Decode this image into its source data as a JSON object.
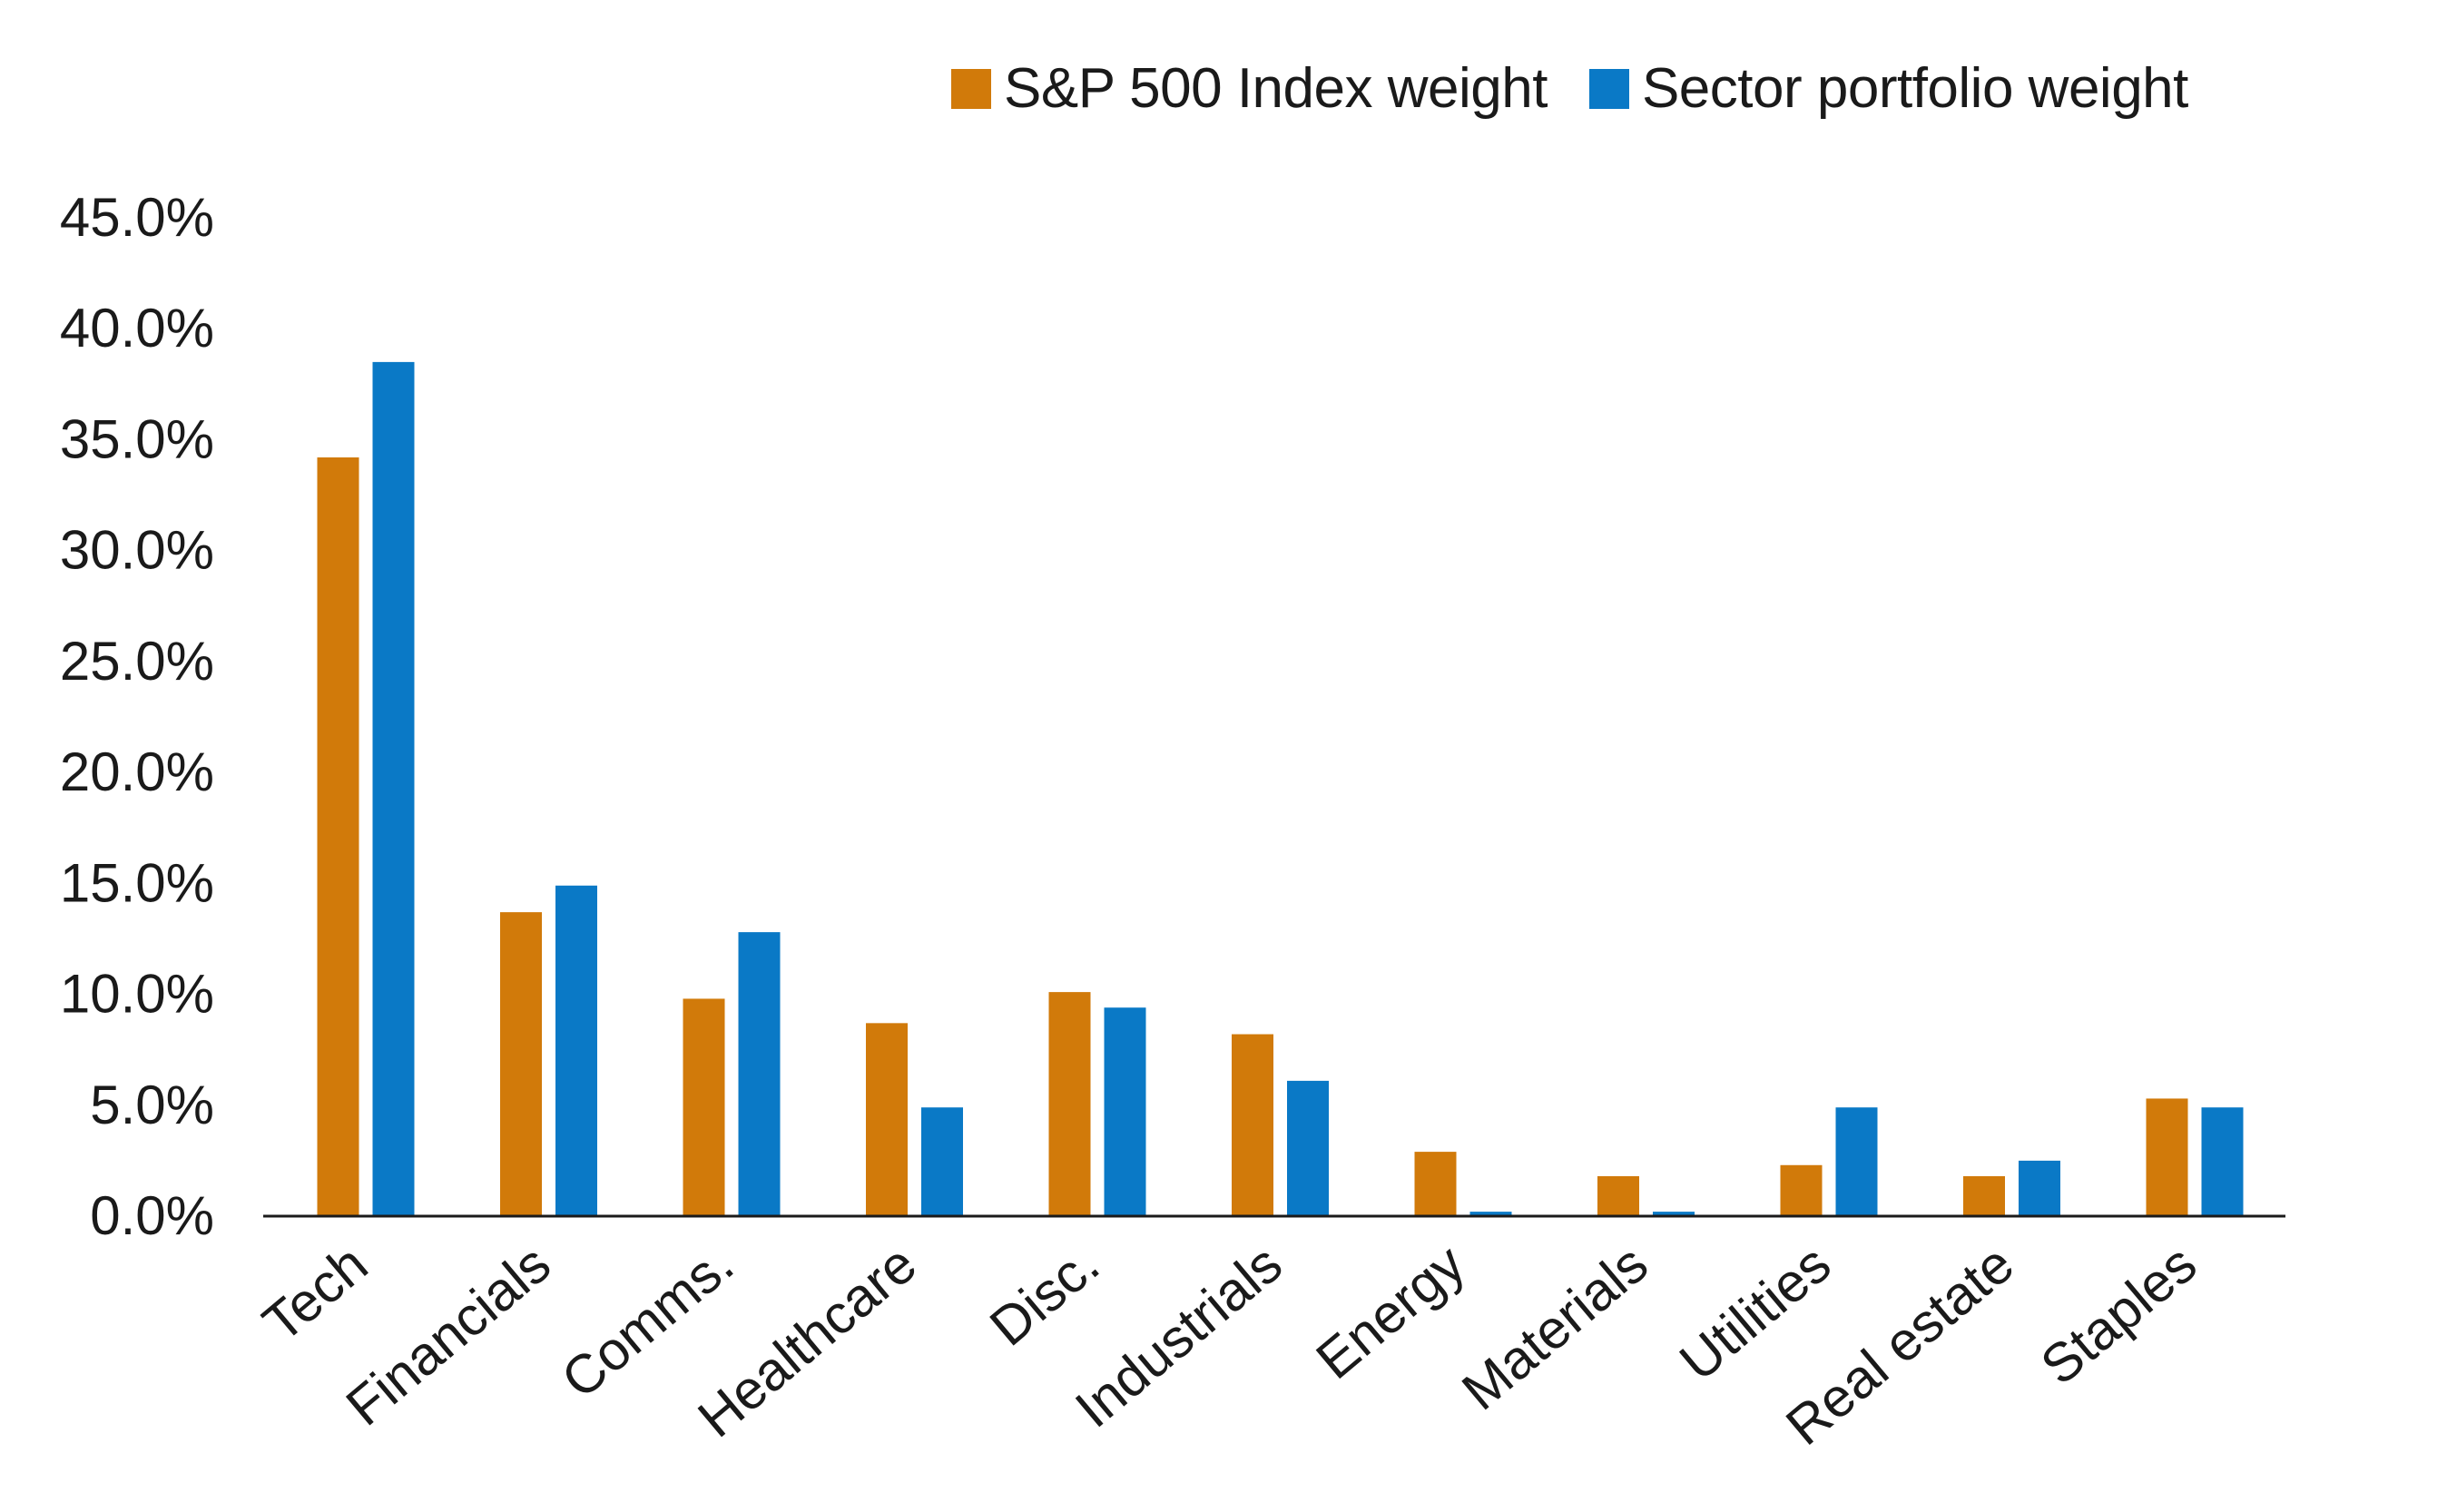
{
  "chart_data": {
    "type": "bar",
    "title": "",
    "xlabel": "",
    "ylabel": "",
    "ylim": [
      0,
      45
    ],
    "y_ticks": [
      "0.0%",
      "5.0%",
      "10.0%",
      "15.0%",
      "20.0%",
      "25.0%",
      "30.0%",
      "35.0%",
      "40.0%",
      "45.0%"
    ],
    "categories": [
      "Tech",
      "Financials",
      "Comms.",
      "Healthcare",
      "Disc.",
      "Industrials",
      "Energy",
      "Materials",
      "Utilities",
      "Real estate",
      "Staples"
    ],
    "series": [
      {
        "name": "S&P 500 Index weight",
        "color": "#d17a0a",
        "values": [
          34.2,
          13.7,
          9.8,
          8.7,
          10.1,
          8.2,
          2.9,
          1.8,
          2.3,
          1.8,
          5.3
        ]
      },
      {
        "name": "Sector portfolio weight",
        "color": "#0a79c6",
        "values": [
          38.5,
          14.9,
          12.8,
          4.9,
          9.4,
          6.1,
          0.2,
          0.2,
          4.9,
          2.5,
          4.9
        ]
      }
    ],
    "legend_position": "top-right",
    "grid": false
  }
}
